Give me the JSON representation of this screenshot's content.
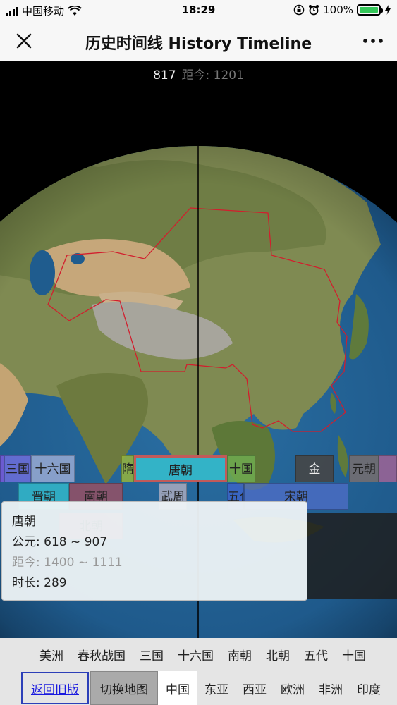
{
  "status": {
    "carrier": "中国移动",
    "time": "18:29",
    "battery": "100%"
  },
  "nav": {
    "title": "历史时间线 History Timeline"
  },
  "year": {
    "value": "817",
    "distance": "距今: 1201"
  },
  "dynasties": {
    "row1": [
      "三国",
      "十六国",
      "隋朝",
      "唐朝",
      "十国",
      "金",
      "元朝"
    ],
    "row2": [
      "晋朝",
      "南朝",
      "武周",
      "五代",
      "宋朝"
    ],
    "row3": [
      "北朝"
    ]
  },
  "tooltip": {
    "name": "唐朝",
    "years": "公元: 618 ~ 907",
    "ago": "距今: 1400 ~ 1111",
    "duration": "时长: 289"
  },
  "categories": [
    "美洲",
    "春秋战国",
    "三国",
    "十六国",
    "南朝",
    "北朝",
    "五代",
    "十国"
  ],
  "bottom": {
    "old_version": "返回旧版",
    "switch_map": "切换地图",
    "regions": [
      "中国",
      "东亚",
      "西亚",
      "欧洲",
      "非洲",
      "印度"
    ]
  },
  "colors": {
    "tang": "#33b3c7",
    "active_region": "#ffffff"
  }
}
